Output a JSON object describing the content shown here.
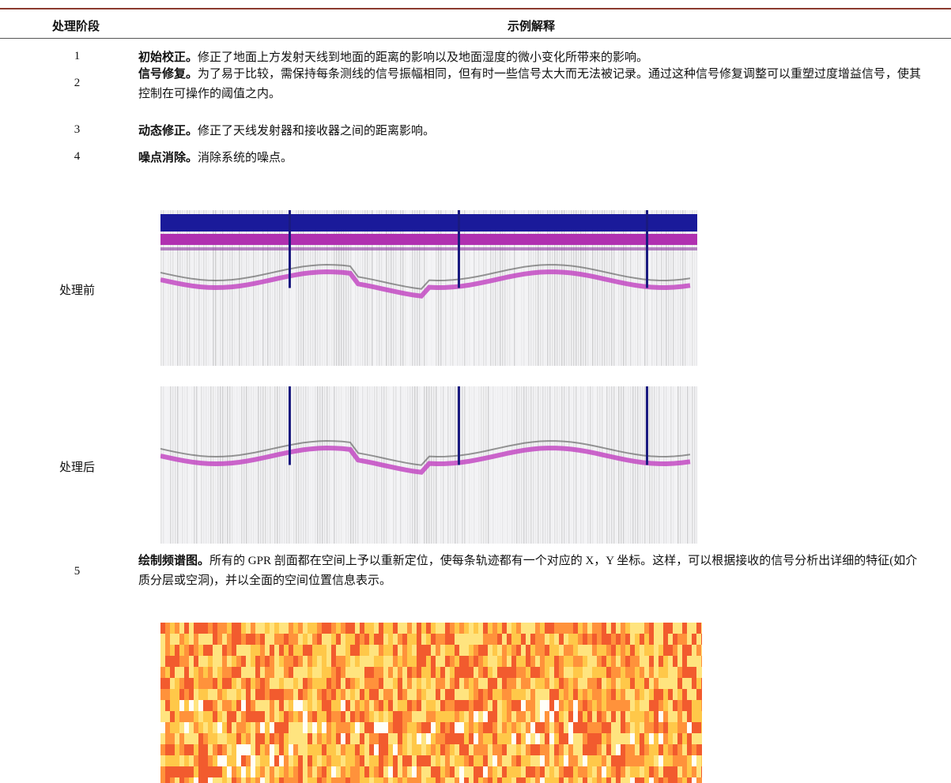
{
  "table": {
    "header": [
      "处理阶段",
      "示例解释"
    ],
    "rows": [
      {
        "stage": "1",
        "title": "初始校正。",
        "text": "修正了地面上方发射天线到地面的距离的影响以及地面湿度的微小变化所带来的影响。"
      },
      {
        "stage": "2",
        "title": "信号修复。",
        "text": "为了易于比较，需保持每条测线的信号振幅相同，但有时一些信号太大而无法被记录。通过这种信号修复调整可以重塑过度增益信号，使其控制在可操作的阈值之内。"
      },
      {
        "stage": "3",
        "title": "动态修正。",
        "text": "修正了天线发射器和接收器之间的距离影响。"
      },
      {
        "stage": "4",
        "title": "噪点消除。",
        "text": "消除系统的噪点。"
      },
      {
        "stage": "5",
        "title": "绘制频谱图。",
        "text": "所有的 GPR 剖面都在空间上予以重新定位，使每条轨迹都有一个对应的 X，Y 坐标。这样，可以根据接收的信号分析出详细的特征(如介质分层或空洞)，并以全面的空间位置信息表示。"
      }
    ],
    "figures": [
      {
        "label": "处理前"
      },
      {
        "label": "处理后"
      }
    ]
  }
}
